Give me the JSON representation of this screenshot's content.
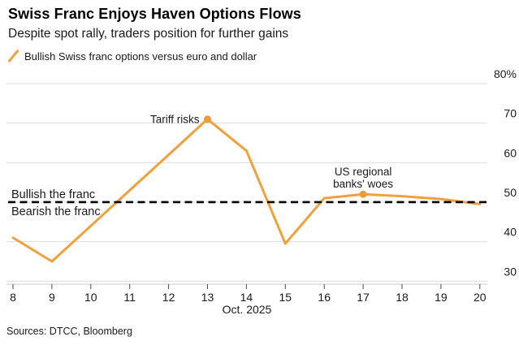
{
  "header": {
    "title": "Swiss Franc Enjoys Haven Options Flows",
    "subtitle": "Despite spot rally, traders position for further gains"
  },
  "legend": {
    "label": "Bullish Swiss franc options versus euro and dollar",
    "color": "#F0A13E"
  },
  "footer": {
    "sources": "Sources: DTCC, Bloomberg"
  },
  "colors": {
    "accent_orange": "#F0A13E",
    "marker_orange": "#EC9B3C",
    "gridline": "#dcdcdc",
    "axis_line": "#c9c9c9",
    "tick": "#4a4a4a",
    "muted_text": "#9a9a9a",
    "text": "#1a1a1a",
    "reference": "#000000"
  },
  "chart_data": {
    "type": "line",
    "title": "Swiss Franc Enjoys Haven Options Flows",
    "x": [
      8,
      9,
      10,
      11,
      12,
      13,
      14,
      15,
      16,
      17,
      18,
      19,
      20
    ],
    "series": [
      {
        "name": "Bullish Swiss franc options versus euro and dollar",
        "color": "#F0A13E",
        "values": [
          41,
          35,
          44,
          53,
          62,
          71,
          63,
          39.5,
          51,
          52,
          51.5,
          50.8,
          49.5
        ]
      }
    ],
    "xlabel": "Oct. 2025",
    "ylabel": "",
    "ylim": [
      29,
      80
    ],
    "yticks": [
      30,
      40,
      50,
      60,
      70,
      80
    ],
    "ytick_labels": [
      "30",
      "40",
      "50",
      "60",
      "70",
      "80%"
    ],
    "grid": true,
    "legend_position": "top-left",
    "reference_line": {
      "value": 50,
      "style": "dashed",
      "color": "#000000",
      "label_above": "Bullish the franc",
      "label_below": "Bearish the franc"
    },
    "annotations": [
      {
        "x": 13,
        "y": 71,
        "text": "Tariff risks",
        "text_lines": [
          "Tariff risks"
        ],
        "anchor": "end",
        "marker": true
      },
      {
        "x": 17,
        "y": 52,
        "text": "US regional banks' woes",
        "text_lines": [
          "US regional",
          "banks' woes"
        ],
        "anchor": "middle",
        "marker": true
      }
    ]
  }
}
